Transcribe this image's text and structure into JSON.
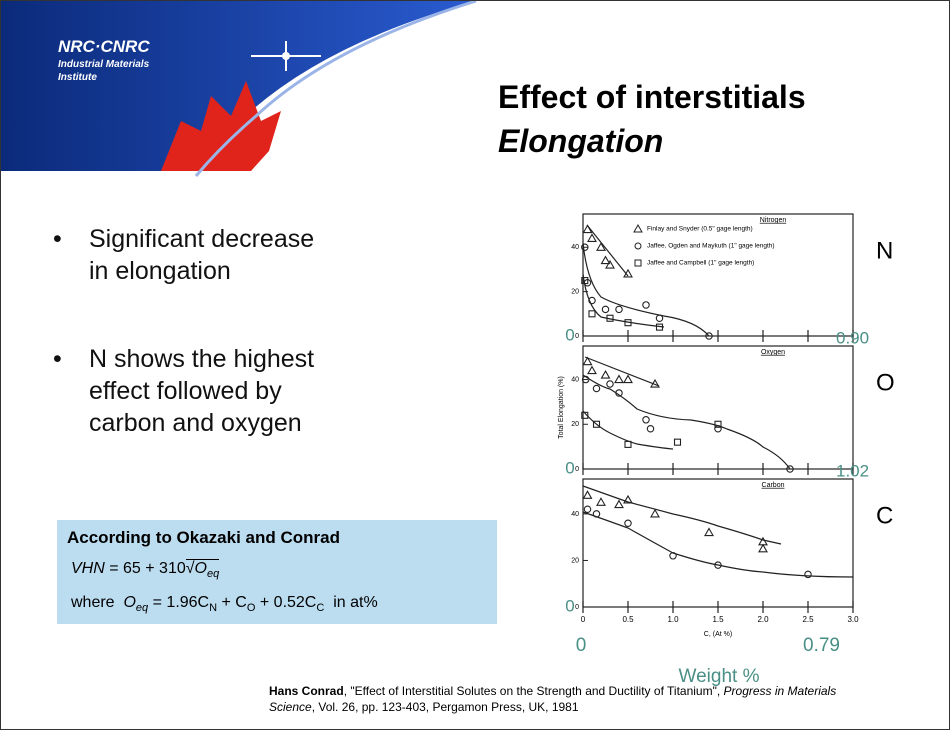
{
  "header": {
    "logo": "NRC·CNRC",
    "institute_1": "Industrial Materials",
    "institute_2": "Institute"
  },
  "title": {
    "line_1": "Effect of interstitials",
    "line_2": "Elongation"
  },
  "bullets": [
    "Significant decrease",
    "in elongation",
    "N shows the highest",
    "effect followed by",
    "carbon and oxygen"
  ],
  "box": {
    "heading": "According to Okazaki and Conrad",
    "formula_1": [
      "VHN",
      "= 65 + 310",
      "O",
      "eq"
    ],
    "formula_2": [
      "where",
      "O",
      "eq",
      "= 1.96C",
      "N",
      "+ C",
      "O",
      "+ 0.52C",
      "C",
      "in at%"
    ]
  },
  "chart_data": [
    {
      "type": "scatter",
      "title": "Nitrogen",
      "element": "N",
      "weight_pct": [
        "0",
        "0.90"
      ],
      "xlim": [
        0,
        3
      ],
      "xticks": [
        0,
        0.5,
        1,
        1.5,
        2,
        2.5,
        3
      ],
      "ylim": [
        0,
        55
      ],
      "yticks": [
        0,
        20,
        40
      ],
      "series": [
        {
          "name": "Finlay and Snyder (0.5\" gage length)",
          "marker": "triangle",
          "color": "#222",
          "x": [
            0.05,
            0.1,
            0.2,
            0.25,
            0.3,
            0.5
          ],
          "values": [
            48,
            44,
            40,
            34,
            32,
            28
          ]
        },
        {
          "name": "Jaffee, Ogden and Maykuth (1\" gage length)",
          "marker": "circle",
          "color": "#222",
          "x": [
            0.02,
            0.05,
            0.1,
            0.25,
            0.4,
            0.7,
            0.85,
            1.4
          ],
          "values": [
            40,
            24,
            16,
            12,
            12,
            14,
            8,
            0
          ]
        },
        {
          "name": "Jaffee and Campbell (1\" gage length)",
          "marker": "square",
          "color": "#222",
          "x": [
            0.02,
            0.1,
            0.3,
            0.5,
            0.85
          ],
          "values": [
            25,
            10,
            8,
            6,
            4
          ]
        }
      ]
    },
    {
      "type": "scatter",
      "title": "Oxygen",
      "element": "O",
      "weight_pct": [
        "0",
        "1.02"
      ],
      "y_label": "Total Elongation (%)",
      "xlim": [
        0,
        3
      ],
      "xticks": [
        0,
        0.5,
        1,
        1.5,
        2,
        2.5,
        3
      ],
      "ylim": [
        0,
        55
      ],
      "yticks": [
        0,
        20,
        40
      ],
      "series": [
        {
          "marker": "triangle",
          "color": "#222",
          "x": [
            0.05,
            0.1,
            0.25,
            0.4,
            0.5,
            0.8
          ],
          "values": [
            48,
            44,
            42,
            40,
            40,
            38
          ]
        },
        {
          "marker": "circle",
          "color": "#222",
          "x": [
            0.03,
            0.15,
            0.3,
            0.4,
            0.7,
            0.75,
            1.5,
            2.3
          ],
          "values": [
            40,
            36,
            38,
            34,
            22,
            18,
            18,
            0
          ]
        },
        {
          "marker": "square",
          "color": "#222",
          "x": [
            0.02,
            0.15,
            0.5,
            1.05,
            1.5
          ],
          "values": [
            24,
            20,
            11,
            12,
            20
          ]
        }
      ]
    },
    {
      "type": "scatter",
      "title": "Carbon",
      "element": "C",
      "weight_pct": [
        "0"
      ],
      "x_label": "C, (At %)",
      "xlim": [
        0,
        3
      ],
      "xticks": [
        0,
        0.5,
        {
          "value": 1,
          "label": "1.0"
        },
        1.5,
        {
          "value": 2,
          "label": "2.0"
        },
        2.5,
        {
          "value": 3,
          "label": "3.0"
        }
      ],
      "ylim": [
        0,
        55
      ],
      "yticks": [
        0,
        20,
        40
      ],
      "series": [
        {
          "marker": "triangle",
          "color": "#222",
          "x": [
            0.05,
            0.2,
            0.4,
            0.5,
            0.8,
            1.4,
            2.0,
            2.0
          ],
          "values": [
            48,
            45,
            44,
            46,
            40,
            32,
            28,
            25
          ]
        },
        {
          "marker": "circle",
          "color": "#222",
          "x": [
            0.05,
            0.15,
            0.5,
            1.0,
            1.5,
            2.5
          ],
          "values": [
            42,
            40,
            36,
            22,
            18,
            14
          ]
        }
      ]
    }
  ],
  "weight_axis": {
    "min": "0",
    "max": "0.79",
    "title": "Weight %"
  },
  "citation": {
    "author": "Hans Conrad",
    "rest_1": ", \"Effect of Interstitial Solutes on the Strength and Ductility of Titanium\", ",
    "journal": "Progress in Materials",
    "journal_2": "Science",
    "rest_2": ", Vol. 26, pp. 123-403, Pergamon Press, UK, 1981"
  }
}
